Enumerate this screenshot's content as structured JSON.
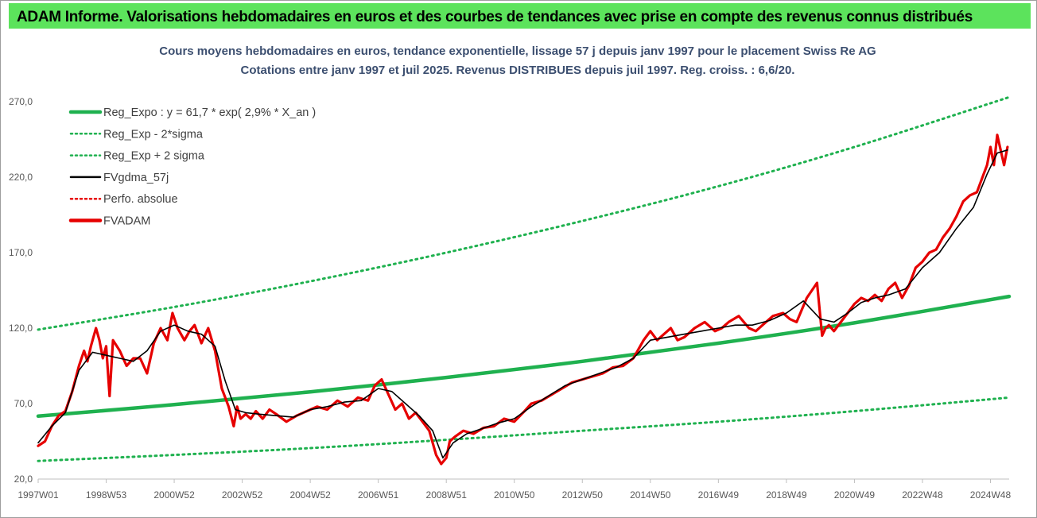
{
  "header": {
    "title": "ADAM Informe. Valorisations hebdomadaires en euros et des courbes de tendances avec prise en compte des revenus connus distribués"
  },
  "colors": {
    "banner": "#5ce35c",
    "regression": "#1fb14f",
    "band": "#1fb14f",
    "smoothed": "#000000",
    "perfo": "#e60000",
    "fvadam": "#e60000",
    "title_text": "#3c4f70"
  },
  "chart_data": {
    "type": "line",
    "title_line1": "Cours moyens hebdomadaires en euros, tendance exponentielle, lissage 57 j depuis janv 1997 pour le placement Swiss Re AG",
    "title_line2": "Cotations entre janv 1997 et juil 2025. Revenus DISTRIBUES depuis juil 1997. Reg. croiss. : 6,6/20.",
    "ylim": [
      20,
      280
    ],
    "yticks": [
      "20,0",
      "70,0",
      "120,0",
      "170,0",
      "220,0",
      "270,0"
    ],
    "x_tick_labels": [
      "1997W01",
      "1998W53",
      "2000W52",
      "2002W52",
      "2004W52",
      "2006W51",
      "2008W51",
      "2010W50",
      "2012W50",
      "2014W50",
      "2016W49",
      "2018W49",
      "2020W49",
      "2022W48",
      "2024W48"
    ],
    "x_tick_years": [
      1997.0,
      1999.0,
      2001.0,
      2003.0,
      2005.0,
      2007.0,
      2009.0,
      2011.0,
      2013.0,
      2015.0,
      2017.0,
      2019.0,
      2021.0,
      2023.0,
      2025.0
    ],
    "xlim": [
      1997.0,
      2025.55
    ],
    "legend_position": "top-left",
    "grid": false,
    "legend": [
      {
        "label": "Reg_Expo : y = 61,7 * exp( 2,9% *  X_an )",
        "style": "solid-thick",
        "color": "#1fb14f"
      },
      {
        "label": "Reg_Exp - 2*sigma",
        "style": "dotted",
        "color": "#1fb14f"
      },
      {
        "label": "Reg_Exp + 2 sigma",
        "style": "dotted",
        "color": "#1fb14f"
      },
      {
        "label": "FVgdma_57j",
        "style": "solid",
        "color": "#000000"
      },
      {
        "label": "Perfo. absolue",
        "style": "dotted",
        "color": "#e60000"
      },
      {
        "label": "FVADAM",
        "style": "solid-thick",
        "color": "#e60000"
      }
    ],
    "series": [
      {
        "name": "Reg_Expo : y = 61,7 * exp( 2,9% *  X_an )",
        "x": [
          1997.0,
          2001.0,
          2005.0,
          2009.0,
          2013.0,
          2017.0,
          2021.0,
          2025.55
        ],
        "values": [
          61.7,
          69.3,
          77.8,
          87.3,
          98.0,
          110.0,
          123.5,
          141.0
        ]
      },
      {
        "name": "Reg_Exp - 2*sigma",
        "x": [
          1997.0,
          2001.0,
          2005.0,
          2009.0,
          2013.0,
          2017.0,
          2021.0,
          2025.55
        ],
        "values": [
          32.0,
          36.0,
          40.5,
          46.0,
          52.0,
          58.0,
          65.0,
          74.0
        ]
      },
      {
        "name": "Reg_Exp + 2 sigma",
        "x": [
          1997.0,
          2001.0,
          2005.0,
          2009.0,
          2013.0,
          2017.0,
          2021.0,
          2025.55
        ],
        "values": [
          119.0,
          134.0,
          151.0,
          170.0,
          191.0,
          214.0,
          240.0,
          273.0
        ]
      },
      {
        "name": "FVADAM",
        "x": [
          1997.0,
          1997.2,
          1997.4,
          1997.6,
          1997.8,
          1998.0,
          1998.2,
          1998.35,
          1998.45,
          1998.55,
          1998.7,
          1998.8,
          1998.9,
          1999.0,
          1999.1,
          1999.2,
          1999.4,
          1999.6,
          1999.8,
          2000.0,
          2000.2,
          2000.4,
          2000.6,
          2000.8,
          2000.95,
          2001.1,
          2001.3,
          2001.45,
          2001.6,
          2001.8,
          2002.0,
          2002.2,
          2002.4,
          2002.6,
          2002.75,
          2002.85,
          2002.95,
          2003.1,
          2003.25,
          2003.4,
          2003.6,
          2003.8,
          2004.0,
          2004.3,
          2004.6,
          2004.9,
          2005.2,
          2005.5,
          2005.8,
          2006.1,
          2006.4,
          2006.7,
          2006.9,
          2007.1,
          2007.3,
          2007.5,
          2007.7,
          2007.9,
          2008.1,
          2008.3,
          2008.5,
          2008.7,
          2008.85,
          2009.0,
          2009.1,
          2009.25,
          2009.5,
          2009.8,
          2010.1,
          2010.4,
          2010.7,
          2011.0,
          2011.3,
          2011.5,
          2011.8,
          2012.1,
          2012.4,
          2012.7,
          2013.0,
          2013.3,
          2013.6,
          2013.9,
          2014.2,
          2014.5,
          2014.7,
          2014.8,
          2014.9,
          2015.0,
          2015.2,
          2015.4,
          2015.6,
          2015.8,
          2016.0,
          2016.3,
          2016.6,
          2016.9,
          2017.1,
          2017.3,
          2017.6,
          2017.9,
          2018.1,
          2018.3,
          2018.6,
          2018.9,
          2019.1,
          2019.3,
          2019.6,
          2019.9,
          2020.05,
          2020.15,
          2020.25,
          2020.4,
          2020.6,
          2020.8,
          2021.0,
          2021.2,
          2021.4,
          2021.6,
          2021.8,
          2022.0,
          2022.2,
          2022.4,
          2022.6,
          2022.8,
          2023.0,
          2023.2,
          2023.4,
          2023.6,
          2023.8,
          2024.0,
          2024.2,
          2024.4,
          2024.6,
          2024.8,
          2024.9,
          2025.0,
          2025.1,
          2025.2,
          2025.3,
          2025.4,
          2025.5
        ],
        "values": [
          42,
          45,
          55,
          62,
          65,
          78,
          95,
          105,
          98,
          108,
          120,
          112,
          100,
          108,
          75,
          112,
          105,
          95,
          100,
          100,
          90,
          110,
          120,
          112,
          130,
          120,
          112,
          118,
          122,
          110,
          120,
          105,
          80,
          68,
          55,
          68,
          60,
          63,
          60,
          65,
          60,
          66,
          63,
          58,
          62,
          65,
          68,
          66,
          72,
          68,
          74,
          72,
          82,
          86,
          76,
          66,
          70,
          60,
          64,
          58,
          52,
          36,
          30,
          34,
          45,
          48,
          52,
          50,
          54,
          55,
          60,
          58,
          65,
          70,
          72,
          76,
          80,
          84,
          86,
          88,
          90,
          94,
          95,
          100,
          108,
          112,
          115,
          118,
          112,
          116,
          120,
          112,
          114,
          120,
          124,
          118,
          120,
          124,
          128,
          120,
          118,
          122,
          128,
          130,
          126,
          124,
          140,
          150,
          115,
          120,
          122,
          118,
          124,
          130,
          136,
          140,
          138,
          142,
          138,
          146,
          150,
          140,
          148,
          160,
          164,
          170,
          172,
          180,
          186,
          194,
          204,
          208,
          210,
          222,
          228,
          240,
          228,
          248,
          238,
          228,
          240
        ]
      },
      {
        "name": "FVgdma_57j",
        "x": [
          1997.0,
          1997.4,
          1997.8,
          1998.2,
          1998.6,
          1999.0,
          1999.4,
          1999.8,
          2000.2,
          2000.6,
          2001.0,
          2001.4,
          2001.8,
          2002.2,
          2002.5,
          2002.8,
          2003.1,
          2003.5,
          2004.0,
          2004.5,
          2005.0,
          2005.5,
          2006.0,
          2006.5,
          2007.0,
          2007.4,
          2007.8,
          2008.2,
          2008.6,
          2008.9,
          2009.2,
          2009.6,
          2010.0,
          2010.5,
          2011.0,
          2011.5,
          2012.0,
          2012.5,
          2013.0,
          2013.5,
          2014.0,
          2014.5,
          2015.0,
          2015.5,
          2016.0,
          2016.5,
          2017.0,
          2017.5,
          2018.0,
          2018.5,
          2019.0,
          2019.5,
          2020.0,
          2020.4,
          2020.8,
          2021.2,
          2021.6,
          2022.0,
          2022.5,
          2023.0,
          2023.5,
          2024.0,
          2024.5,
          2024.9,
          2025.2,
          2025.5
        ],
        "values": [
          44,
          55,
          64,
          92,
          104,
          102,
          100,
          98,
          105,
          118,
          122,
          118,
          116,
          108,
          85,
          66,
          64,
          63,
          62,
          61,
          66,
          68,
          71,
          72,
          80,
          78,
          70,
          62,
          52,
          34,
          44,
          50,
          53,
          57,
          60,
          68,
          75,
          82,
          86,
          90,
          94,
          100,
          112,
          114,
          116,
          118,
          120,
          122,
          122,
          125,
          130,
          138,
          126,
          124,
          130,
          137,
          140,
          142,
          146,
          160,
          170,
          186,
          200,
          222,
          236,
          238
        ]
      },
      {
        "name": "Perfo. absolue",
        "x": [],
        "values": []
      }
    ]
  }
}
